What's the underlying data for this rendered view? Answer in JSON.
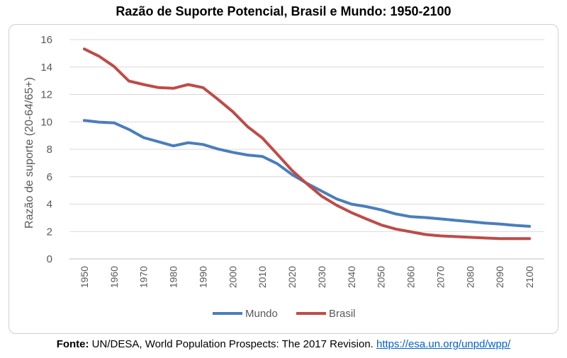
{
  "chart_data": {
    "type": "line",
    "title": "Razão de Suporte Potencial, Brasil e Mundo: 1950-2100",
    "ylabel": "Razão de suporte (20-64/65+)",
    "xlabel": "",
    "ylim": [
      0,
      16
    ],
    "yticks": [
      "0",
      "2",
      "4",
      "6",
      "8",
      "10",
      "12",
      "14",
      "16"
    ],
    "x": [
      1950,
      1955,
      1960,
      1965,
      1970,
      1975,
      1980,
      1985,
      1990,
      1995,
      2000,
      2005,
      2010,
      2015,
      2020,
      2025,
      2030,
      2035,
      2040,
      2045,
      2050,
      2055,
      2060,
      2065,
      2070,
      2075,
      2080,
      2085,
      2090,
      2095,
      2100
    ],
    "xticks": [
      "1950",
      "1960",
      "1970",
      "1980",
      "1990",
      "2000",
      "2010",
      "2020",
      "2030",
      "2040",
      "2050",
      "2060",
      "2070",
      "2080",
      "2090",
      "2100"
    ],
    "grid": "horizontal",
    "legend_position": "bottom",
    "series": [
      {
        "name": "Mundo",
        "color": "#4a7ebb",
        "values": [
          10.1,
          9.98,
          9.93,
          9.45,
          8.85,
          8.55,
          8.25,
          8.48,
          8.35,
          8.02,
          7.78,
          7.58,
          7.48,
          6.95,
          6.15,
          5.52,
          4.95,
          4.38,
          4.0,
          3.82,
          3.58,
          3.28,
          3.08,
          3.02,
          2.92,
          2.82,
          2.72,
          2.62,
          2.55,
          2.45,
          2.38
        ]
      },
      {
        "name": "Brasil",
        "color": "#be4b48",
        "values": [
          15.32,
          14.78,
          14.05,
          12.98,
          12.72,
          12.5,
          12.45,
          12.72,
          12.5,
          11.65,
          10.75,
          9.65,
          8.82,
          7.65,
          6.45,
          5.48,
          4.58,
          3.92,
          3.38,
          2.92,
          2.48,
          2.18,
          1.98,
          1.78,
          1.68,
          1.63,
          1.58,
          1.53,
          1.48,
          1.48,
          1.48
        ]
      }
    ]
  },
  "source": {
    "prefix": "Fonte:",
    "text": " UN/DESA, World Population Prospects: The 2017 Revision. ",
    "link": "https://esa.un.org/unpd/wpp/"
  }
}
